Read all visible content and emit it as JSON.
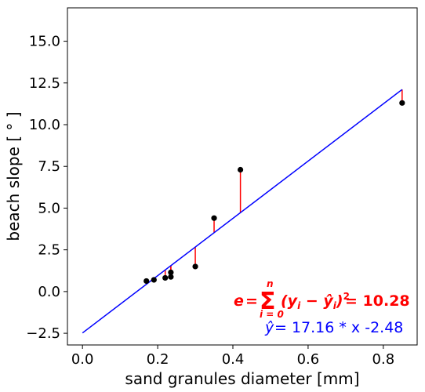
{
  "chart_data": {
    "type": "scatter",
    "xlabel": "sand granules diameter [mm]",
    "ylabel": "beach slope [ ° ]",
    "xlim": [
      -0.04,
      0.89
    ],
    "ylim": [
      -3.2,
      17.0
    ],
    "x_ticks": [
      {
        "v": 0.0,
        "label": "0.0"
      },
      {
        "v": 0.2,
        "label": "0.2"
      },
      {
        "v": 0.4,
        "label": "0.4"
      },
      {
        "v": 0.6,
        "label": "0.6"
      },
      {
        "v": 0.8,
        "label": "0.8"
      }
    ],
    "y_ticks": [
      {
        "v": -2.5,
        "label": "−2.5"
      },
      {
        "v": 0.0,
        "label": "0.0"
      },
      {
        "v": 2.5,
        "label": "2.5"
      },
      {
        "v": 5.0,
        "label": "5.0"
      },
      {
        "v": 7.5,
        "label": "7.5"
      },
      {
        "v": 10.0,
        "label": "10.0"
      },
      {
        "v": 12.5,
        "label": "12.5"
      },
      {
        "v": 15.0,
        "label": "15.0"
      }
    ],
    "points": [
      {
        "x": 0.17,
        "y": 0.63
      },
      {
        "x": 0.19,
        "y": 0.7
      },
      {
        "x": 0.22,
        "y": 0.82
      },
      {
        "x": 0.235,
        "y": 0.88
      },
      {
        "x": 0.235,
        "y": 1.15
      },
      {
        "x": 0.3,
        "y": 1.5
      },
      {
        "x": 0.35,
        "y": 4.4
      },
      {
        "x": 0.42,
        "y": 7.3
      },
      {
        "x": 0.85,
        "y": 11.3
      }
    ],
    "fit": {
      "slope": 17.16,
      "intercept": -2.48,
      "x_range": [
        0.0,
        0.85
      ]
    },
    "colors": {
      "points": "#000000",
      "fit": "#0000ff",
      "residuals": "#ff0000"
    },
    "annotations": {
      "error_value": "10.28",
      "equation_value": " = 17.16 * x -2.48"
    }
  }
}
